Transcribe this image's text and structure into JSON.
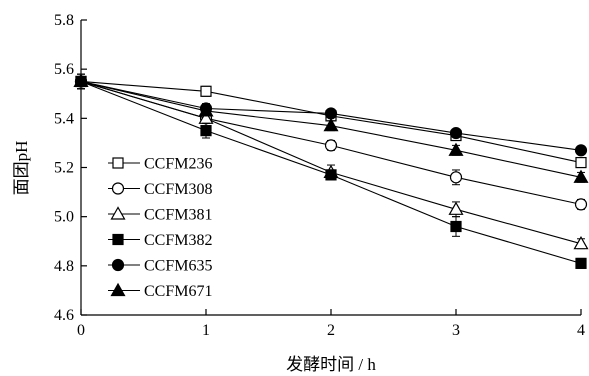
{
  "chart_data": {
    "type": "line",
    "title": "",
    "xlabel": "发酵时间 / h",
    "ylabel": "面团pH",
    "x": [
      0,
      1,
      2,
      3,
      4
    ],
    "xlim": [
      0,
      4
    ],
    "ylim": [
      4.6,
      5.8
    ],
    "x_ticks": [
      "0",
      "1",
      "2",
      "3",
      "4"
    ],
    "y_ticks": [
      "4.6",
      "4.8",
      "5.0",
      "5.2",
      "5.4",
      "5.6",
      "5.8"
    ],
    "grid": false,
    "legend_position": "left",
    "series": [
      {
        "name": "CCFM236",
        "marker": "open-square",
        "values": [
          5.55,
          5.51,
          5.41,
          5.33,
          5.22
        ],
        "errors": [
          0.03,
          0.02,
          0.02,
          0.02,
          0.02
        ]
      },
      {
        "name": "CCFM308",
        "marker": "open-circle",
        "values": [
          5.55,
          5.4,
          5.29,
          5.16,
          5.05
        ],
        "errors": [
          0.03,
          0.02,
          0.02,
          0.03,
          0.02
        ]
      },
      {
        "name": "CCFM381",
        "marker": "open-triangle",
        "values": [
          5.55,
          5.4,
          5.18,
          5.03,
          4.89
        ],
        "errors": [
          0.03,
          0.02,
          0.03,
          0.03,
          0.02
        ]
      },
      {
        "name": "CCFM382",
        "marker": "filled-square",
        "values": [
          5.55,
          5.35,
          5.17,
          4.96,
          4.81
        ],
        "errors": [
          0.03,
          0.03,
          0.02,
          0.04,
          0.02
        ]
      },
      {
        "name": "CCFM635",
        "marker": "filled-circle",
        "values": [
          5.55,
          5.44,
          5.42,
          5.34,
          5.27
        ],
        "errors": [
          0.03,
          0.02,
          0.01,
          0.01,
          0.01
        ]
      },
      {
        "name": "CCFM671",
        "marker": "filled-triangle",
        "values": [
          5.55,
          5.43,
          5.37,
          5.27,
          5.16
        ],
        "errors": [
          0.03,
          0.02,
          0.02,
          0.02,
          0.02
        ]
      }
    ]
  }
}
